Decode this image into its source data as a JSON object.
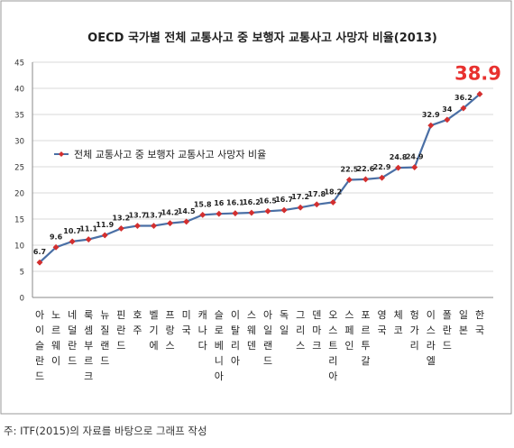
{
  "chart_data": {
    "type": "line",
    "title": "OECD 국가별 전체 교통사고 중 보행자 교통사고 사망자 비율(2013)",
    "legend": {
      "label": "전체 교통사고 중 보행자 교통사고 사망자 비율",
      "placement": "left-middle"
    },
    "ylim": [
      0,
      45
    ],
    "yticks": [
      0,
      5,
      10,
      15,
      20,
      25,
      30,
      35,
      40,
      45
    ],
    "grid": true,
    "highlight": {
      "value": "38.9",
      "color": "#e8312f"
    },
    "series_color": "#4a6fa5",
    "marker_color": "#d32f2f",
    "categories": [
      "아이슬란드",
      "노르웨이",
      "네덜란드",
      "룩셈부르크",
      "뉴질랜드",
      "핀란드",
      "호주",
      "벨기에",
      "프랑스",
      "미국",
      "캐나다",
      "슬로베니아",
      "이탈리아",
      "스웨덴",
      "아일랜드",
      "독일",
      "그리스",
      "덴마크",
      "오스트리아",
      "스페인",
      "포르투갈",
      "영국",
      "체코",
      "헝가리",
      "이스라엘",
      "폴란드",
      "일본",
      "한국"
    ],
    "values": [
      6.7,
      9.6,
      10.7,
      11.1,
      11.9,
      13.2,
      13.7,
      13.7,
      14.2,
      14.5,
      15.8,
      16,
      16.1,
      16.2,
      16.5,
      16.7,
      17.2,
      17.8,
      18.2,
      22.5,
      22.6,
      22.9,
      24.8,
      24.9,
      32.9,
      34,
      36.2,
      38.9
    ],
    "data_labels": [
      "6.7",
      "9.6",
      "10.7",
      "11.1",
      "11.9",
      "13.2",
      "13.7",
      "13.7",
      "14.2",
      "14.5",
      "15.8",
      "16",
      "16.1",
      "16.2",
      "16.5",
      "16.7",
      "17.2",
      "17.8",
      "18.2",
      "22.5",
      "22.6",
      "22.9",
      "24.8",
      "24.9",
      "32.9",
      "34",
      "36.2",
      ""
    ]
  },
  "footnote": "주: ITF(2015)의 자료를 바탕으로 그래프 작성"
}
